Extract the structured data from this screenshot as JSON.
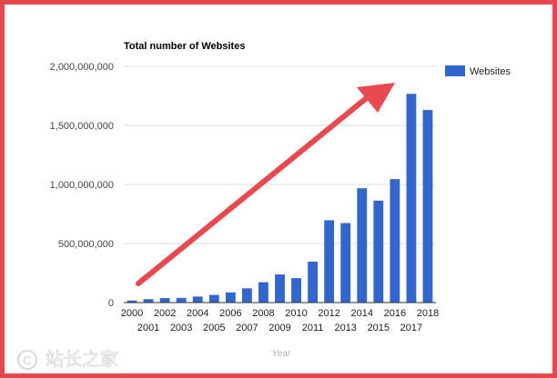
{
  "chart_data": {
    "type": "bar",
    "title": "Total number of Websites",
    "xlabel": "Year",
    "ylabel": "",
    "ylim": [
      0,
      2000000000
    ],
    "yticks": [
      0,
      500000000,
      1000000000,
      1500000000,
      2000000000
    ],
    "ytick_labels": [
      "0",
      "500,000,000",
      "1,000,000,000",
      "1,500,000,000",
      "2,000,000,000"
    ],
    "categories": [
      "2000",
      "2001",
      "2002",
      "2003",
      "2004",
      "2005",
      "2006",
      "2007",
      "2008",
      "2009",
      "2010",
      "2011",
      "2012",
      "2013",
      "2014",
      "2015",
      "2016",
      "2017",
      "2018"
    ],
    "series": [
      {
        "name": "Websites",
        "color": "#3366cc",
        "values": [
          17000000,
          29000000,
          38000000,
          40000000,
          51000000,
          65000000,
          86000000,
          121000000,
          172000000,
          238000000,
          207000000,
          347000000,
          697000000,
          673000000,
          968000000,
          863000000,
          1045000000,
          1767000000,
          1630000000
        ]
      }
    ],
    "legend_position": "top-right",
    "grid": true,
    "annotation": "red-arrow-trend-up"
  },
  "watermark": "站长之家",
  "colors": {
    "frame": "#e5474f",
    "arrow": "#e8484f",
    "grid": "#dddddd",
    "axis": "#333333"
  }
}
